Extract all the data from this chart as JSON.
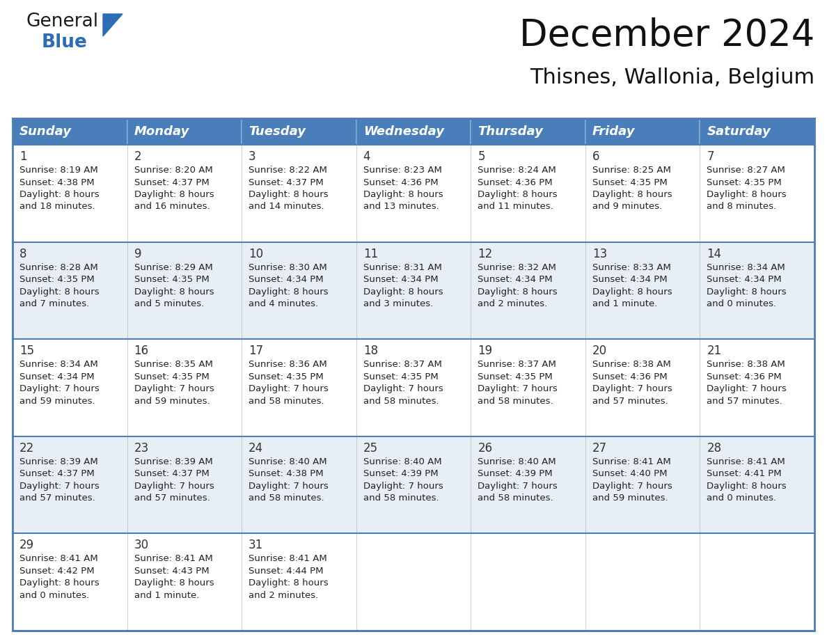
{
  "title": "December 2024",
  "subtitle": "Thisnes, Wallonia, Belgium",
  "header_color": "#4a7ebb",
  "header_text_color": "#FFFFFF",
  "day_names": [
    "Sunday",
    "Monday",
    "Tuesday",
    "Wednesday",
    "Thursday",
    "Friday",
    "Saturday"
  ],
  "alt_row_color": "#e8eef5",
  "white_row_color": "#FFFFFF",
  "border_color": "#4a7ebb",
  "cell_text_color": "#222222",
  "day_number_color": "#333333",
  "weeks": [
    [
      {
        "day": 1,
        "sunrise": "8:19 AM",
        "sunset": "4:38 PM",
        "daylight_h": "8 hours",
        "daylight_m": "and 18 minutes."
      },
      {
        "day": 2,
        "sunrise": "8:20 AM",
        "sunset": "4:37 PM",
        "daylight_h": "8 hours",
        "daylight_m": "and 16 minutes."
      },
      {
        "day": 3,
        "sunrise": "8:22 AM",
        "sunset": "4:37 PM",
        "daylight_h": "8 hours",
        "daylight_m": "and 14 minutes."
      },
      {
        "day": 4,
        "sunrise": "8:23 AM",
        "sunset": "4:36 PM",
        "daylight_h": "8 hours",
        "daylight_m": "and 13 minutes."
      },
      {
        "day": 5,
        "sunrise": "8:24 AM",
        "sunset": "4:36 PM",
        "daylight_h": "8 hours",
        "daylight_m": "and 11 minutes."
      },
      {
        "day": 6,
        "sunrise": "8:25 AM",
        "sunset": "4:35 PM",
        "daylight_h": "8 hours",
        "daylight_m": "and 9 minutes."
      },
      {
        "day": 7,
        "sunrise": "8:27 AM",
        "sunset": "4:35 PM",
        "daylight_h": "8 hours",
        "daylight_m": "and 8 minutes."
      }
    ],
    [
      {
        "day": 8,
        "sunrise": "8:28 AM",
        "sunset": "4:35 PM",
        "daylight_h": "8 hours",
        "daylight_m": "and 7 minutes."
      },
      {
        "day": 9,
        "sunrise": "8:29 AM",
        "sunset": "4:35 PM",
        "daylight_h": "8 hours",
        "daylight_m": "and 5 minutes."
      },
      {
        "day": 10,
        "sunrise": "8:30 AM",
        "sunset": "4:34 PM",
        "daylight_h": "8 hours",
        "daylight_m": "and 4 minutes."
      },
      {
        "day": 11,
        "sunrise": "8:31 AM",
        "sunset": "4:34 PM",
        "daylight_h": "8 hours",
        "daylight_m": "and 3 minutes."
      },
      {
        "day": 12,
        "sunrise": "8:32 AM",
        "sunset": "4:34 PM",
        "daylight_h": "8 hours",
        "daylight_m": "and 2 minutes."
      },
      {
        "day": 13,
        "sunrise": "8:33 AM",
        "sunset": "4:34 PM",
        "daylight_h": "8 hours",
        "daylight_m": "and 1 minute."
      },
      {
        "day": 14,
        "sunrise": "8:34 AM",
        "sunset": "4:34 PM",
        "daylight_h": "8 hours",
        "daylight_m": "and 0 minutes."
      }
    ],
    [
      {
        "day": 15,
        "sunrise": "8:34 AM",
        "sunset": "4:34 PM",
        "daylight_h": "7 hours",
        "daylight_m": "and 59 minutes."
      },
      {
        "day": 16,
        "sunrise": "8:35 AM",
        "sunset": "4:35 PM",
        "daylight_h": "7 hours",
        "daylight_m": "and 59 minutes."
      },
      {
        "day": 17,
        "sunrise": "8:36 AM",
        "sunset": "4:35 PM",
        "daylight_h": "7 hours",
        "daylight_m": "and 58 minutes."
      },
      {
        "day": 18,
        "sunrise": "8:37 AM",
        "sunset": "4:35 PM",
        "daylight_h": "7 hours",
        "daylight_m": "and 58 minutes."
      },
      {
        "day": 19,
        "sunrise": "8:37 AM",
        "sunset": "4:35 PM",
        "daylight_h": "7 hours",
        "daylight_m": "and 58 minutes."
      },
      {
        "day": 20,
        "sunrise": "8:38 AM",
        "sunset": "4:36 PM",
        "daylight_h": "7 hours",
        "daylight_m": "and 57 minutes."
      },
      {
        "day": 21,
        "sunrise": "8:38 AM",
        "sunset": "4:36 PM",
        "daylight_h": "7 hours",
        "daylight_m": "and 57 minutes."
      }
    ],
    [
      {
        "day": 22,
        "sunrise": "8:39 AM",
        "sunset": "4:37 PM",
        "daylight_h": "7 hours",
        "daylight_m": "and 57 minutes."
      },
      {
        "day": 23,
        "sunrise": "8:39 AM",
        "sunset": "4:37 PM",
        "daylight_h": "7 hours",
        "daylight_m": "and 57 minutes."
      },
      {
        "day": 24,
        "sunrise": "8:40 AM",
        "sunset": "4:38 PM",
        "daylight_h": "7 hours",
        "daylight_m": "and 58 minutes."
      },
      {
        "day": 25,
        "sunrise": "8:40 AM",
        "sunset": "4:39 PM",
        "daylight_h": "7 hours",
        "daylight_m": "and 58 minutes."
      },
      {
        "day": 26,
        "sunrise": "8:40 AM",
        "sunset": "4:39 PM",
        "daylight_h": "7 hours",
        "daylight_m": "and 58 minutes."
      },
      {
        "day": 27,
        "sunrise": "8:41 AM",
        "sunset": "4:40 PM",
        "daylight_h": "7 hours",
        "daylight_m": "and 59 minutes."
      },
      {
        "day": 28,
        "sunrise": "8:41 AM",
        "sunset": "4:41 PM",
        "daylight_h": "8 hours",
        "daylight_m": "and 0 minutes."
      }
    ],
    [
      {
        "day": 29,
        "sunrise": "8:41 AM",
        "sunset": "4:42 PM",
        "daylight_h": "8 hours",
        "daylight_m": "and 0 minutes."
      },
      {
        "day": 30,
        "sunrise": "8:41 AM",
        "sunset": "4:43 PM",
        "daylight_h": "8 hours",
        "daylight_m": "and 1 minute."
      },
      {
        "day": 31,
        "sunrise": "8:41 AM",
        "sunset": "4:44 PM",
        "daylight_h": "8 hours",
        "daylight_m": "and 2 minutes."
      },
      null,
      null,
      null,
      null
    ]
  ],
  "logo_general_color": "#1a1a1a",
  "logo_blue_color": "#2d6db5",
  "logo_triangle_color": "#2d6db5",
  "title_fontsize": 38,
  "subtitle_fontsize": 22,
  "header_fontsize": 13,
  "day_num_fontsize": 12,
  "cell_fontsize": 9.5
}
